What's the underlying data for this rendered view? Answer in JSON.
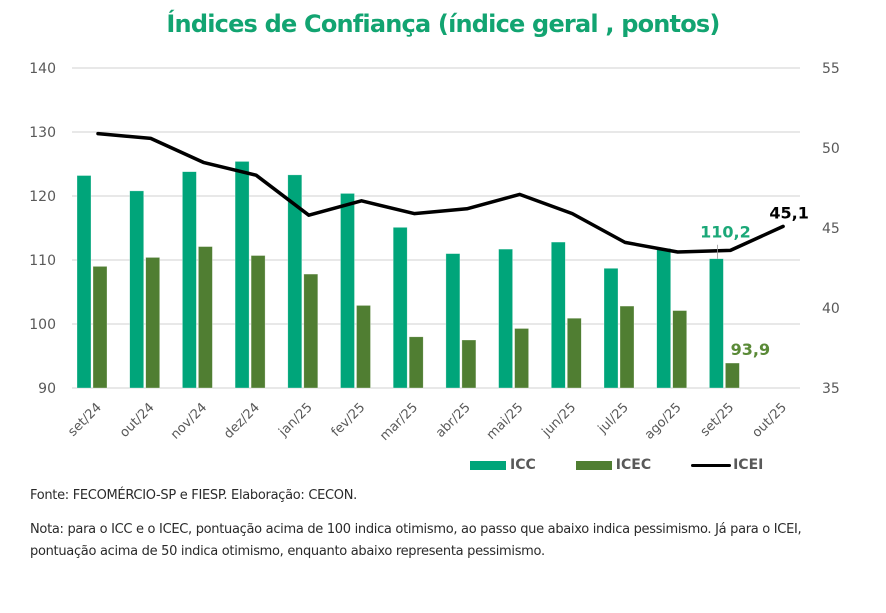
{
  "chart_data": {
    "type": "bar",
    "title": "Índices de Confiança (índice geral , pontos)",
    "xlabel": "",
    "ylabel": "",
    "categories": [
      "set/24",
      "out/24",
      "nov/24",
      "dez/24",
      "jan/25",
      "fev/25",
      "mar/25",
      "abr/25",
      "mai/25",
      "jun/25",
      "jul/25",
      "ago/25",
      "set/25",
      "out/25"
    ],
    "left_axis": {
      "ylim": [
        90,
        140
      ],
      "ticks": [
        140,
        130,
        120,
        110,
        100,
        90
      ]
    },
    "right_axis": {
      "ylim": [
        35,
        55
      ],
      "ticks": [
        55,
        50,
        45,
        40,
        35
      ]
    },
    "grid": true,
    "legend_position": "bottom-right",
    "series": [
      {
        "name": "ICC",
        "kind": "bar",
        "axis": "left",
        "color": "#00A57A",
        "values": [
          123.2,
          120.8,
          123.8,
          125.4,
          123.3,
          120.4,
          115.1,
          111.0,
          111.7,
          112.8,
          108.7,
          111.8,
          110.2,
          null
        ]
      },
      {
        "name": "ICEC",
        "kind": "bar",
        "axis": "left",
        "color": "#507E32",
        "values": [
          109.0,
          110.4,
          112.1,
          110.7,
          107.8,
          102.9,
          98.0,
          97.5,
          99.3,
          100.9,
          102.8,
          102.1,
          93.9,
          null
        ]
      },
      {
        "name": "ICEI",
        "kind": "line",
        "axis": "right",
        "color": "#000000",
        "values": [
          50.9,
          50.6,
          49.1,
          48.3,
          45.8,
          46.7,
          45.9,
          46.2,
          47.1,
          45.9,
          44.1,
          43.5,
          43.6,
          45.1
        ]
      }
    ],
    "annotations": [
      {
        "series": "ICC",
        "category": "set/25",
        "text": "110,2",
        "color": "#1BA878"
      },
      {
        "series": "ICEC",
        "category": "set/25",
        "text": "93,9",
        "color": "#5A8A37"
      },
      {
        "series": "ICEI",
        "category": "out/25",
        "text": "45,1",
        "color": "#000000"
      }
    ]
  },
  "legend": {
    "items": [
      {
        "label": "ICC",
        "color": "#00A57A",
        "type": "bar"
      },
      {
        "label": "ICEC",
        "color": "#507E32",
        "type": "bar"
      },
      {
        "label": "ICEI",
        "color": "#000000",
        "type": "line"
      }
    ]
  },
  "footer": {
    "source": "Fonte: FECOMÉRCIO-SP e FIESP. Elaboração: CECON.",
    "note": "Nota: para o ICC e o ICEC, pontuação acima de 100 indica otimismo, ao passo que abaixo indica pessimismo. Já para o ICEI, pontuação acima de 50 indica otimismo, enquanto abaixo representa pessimismo."
  }
}
